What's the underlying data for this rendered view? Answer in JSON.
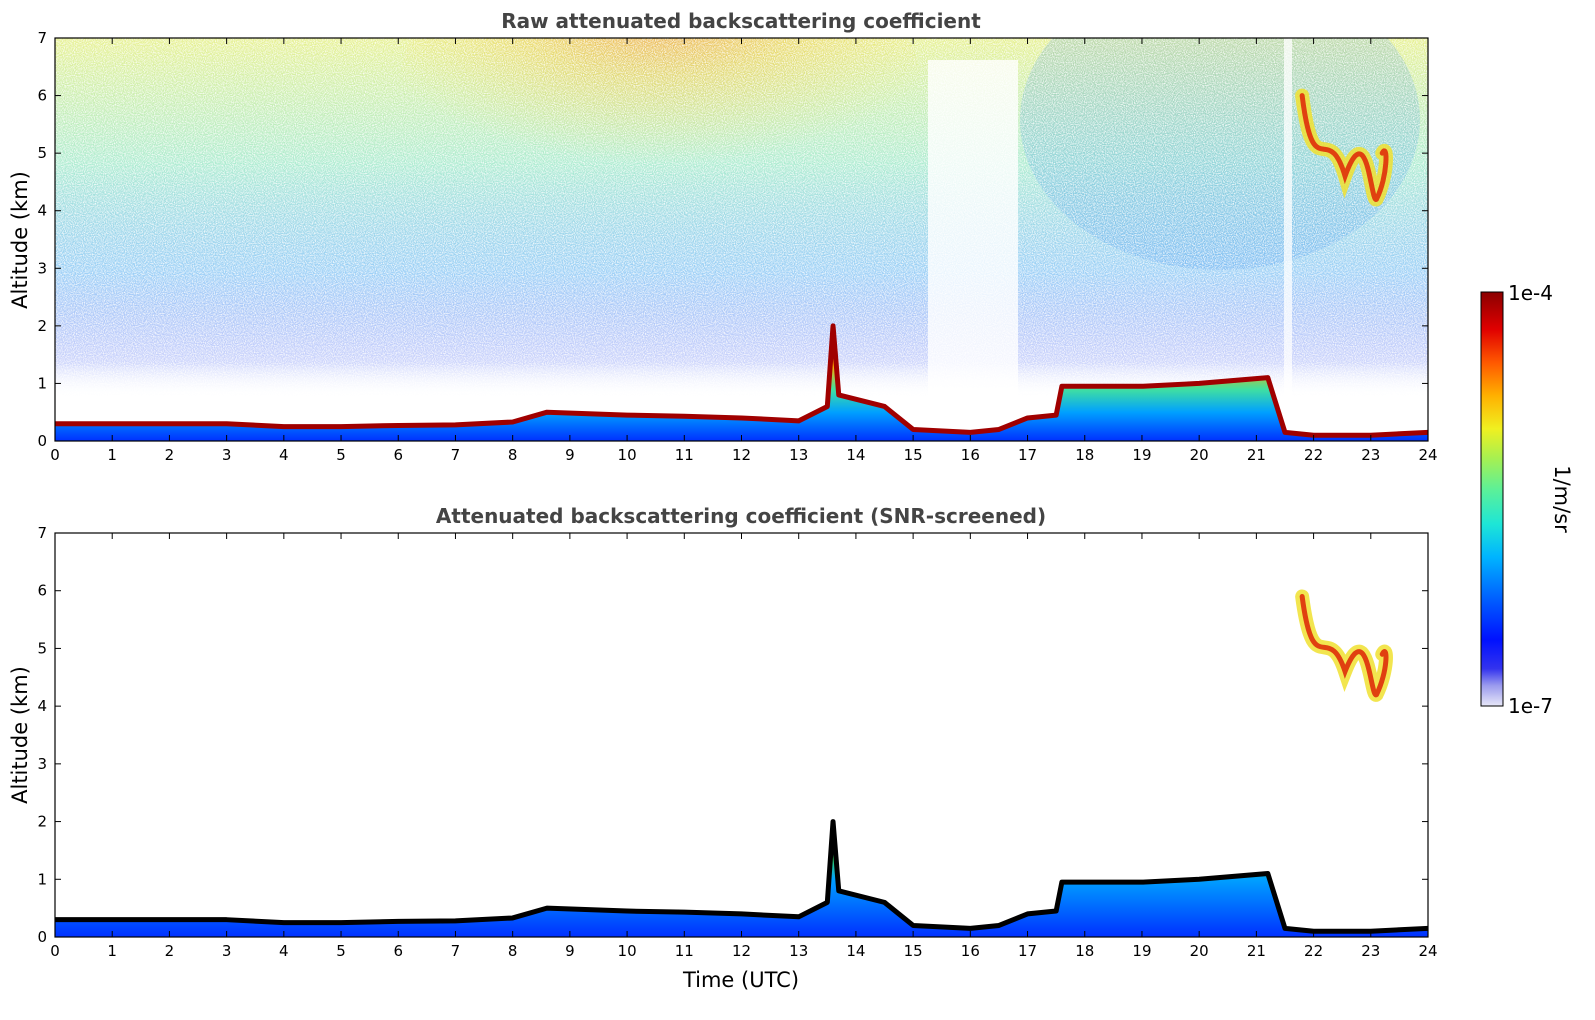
{
  "chart_data": [
    {
      "type": "heatmap",
      "title": "Raw attenuated backscattering coefficient",
      "xlabel": "",
      "ylabel": "Altitude (km)",
      "xlim": [
        0,
        24
      ],
      "ylim": [
        0,
        7
      ],
      "x_ticks": [
        "0",
        "1",
        "2",
        "3",
        "4",
        "5",
        "6",
        "7",
        "8",
        "9",
        "10",
        "11",
        "12",
        "13",
        "14",
        "15",
        "16",
        "17",
        "18",
        "19",
        "20",
        "21",
        "22",
        "23",
        "24"
      ],
      "y_ticks": [
        "0",
        "1",
        "2",
        "3",
        "4",
        "5",
        "6",
        "7"
      ],
      "cloud_base_km": [
        [
          0,
          0.3
        ],
        [
          1,
          0.3
        ],
        [
          2,
          0.3
        ],
        [
          3,
          0.3
        ],
        [
          4,
          0.25
        ],
        [
          5,
          0.25
        ],
        [
          6,
          0.27
        ],
        [
          7,
          0.28
        ],
        [
          8,
          0.33
        ],
        [
          8.6,
          0.5
        ],
        [
          10,
          0.45
        ],
        [
          11,
          0.43
        ],
        [
          12,
          0.4
        ],
        [
          13,
          0.35
        ],
        [
          13.5,
          0.6
        ],
        [
          13.6,
          2.0
        ],
        [
          13.7,
          0.8
        ],
        [
          14.5,
          0.6
        ],
        [
          15,
          0.2
        ],
        [
          16,
          0.15
        ],
        [
          16.5,
          0.2
        ],
        [
          17,
          0.4
        ],
        [
          17.5,
          0.45
        ],
        [
          17.6,
          0.95
        ],
        [
          19,
          0.95
        ],
        [
          20,
          1.0
        ],
        [
          21.2,
          1.1
        ],
        [
          21.5,
          0.15
        ],
        [
          22,
          0.1
        ],
        [
          23,
          0.1
        ],
        [
          24,
          0.15
        ]
      ],
      "noise": "present",
      "elevated_layer": {
        "x_start": 21.8,
        "x_end": 23.3,
        "alt_low_km": 4.2,
        "alt_high_km": 6.0
      }
    },
    {
      "type": "heatmap",
      "title": "Attenuated backscattering coefficient (SNR-screened)",
      "xlabel": "Time (UTC)",
      "ylabel": "Altitude (km)",
      "xlim": [
        0,
        24
      ],
      "ylim": [
        0,
        7
      ],
      "x_ticks": [
        "0",
        "1",
        "2",
        "3",
        "4",
        "5",
        "6",
        "7",
        "8",
        "9",
        "10",
        "11",
        "12",
        "13",
        "14",
        "15",
        "16",
        "17",
        "18",
        "19",
        "20",
        "21",
        "22",
        "23",
        "24"
      ],
      "y_ticks": [
        "0",
        "1",
        "2",
        "3",
        "4",
        "5",
        "6",
        "7"
      ],
      "noise": "screened",
      "elevated_layer": {
        "x_start": 21.8,
        "x_end": 23.3,
        "alt_low_km": 4.2,
        "alt_high_km": 5.9
      }
    }
  ],
  "colorbar": {
    "label": "1/m/sr",
    "max_label": "1e-4",
    "min_label": "1e-7",
    "scale": "log",
    "colormap": [
      "#e8e8f8",
      "#9999ee",
      "#3333ee",
      "#0011ff",
      "#0060ff",
      "#00b4ff",
      "#1ee6d6",
      "#5af09a",
      "#a8f050",
      "#f0f020",
      "#ffb000",
      "#ff5800",
      "#e00000",
      "#8b0000"
    ]
  }
}
